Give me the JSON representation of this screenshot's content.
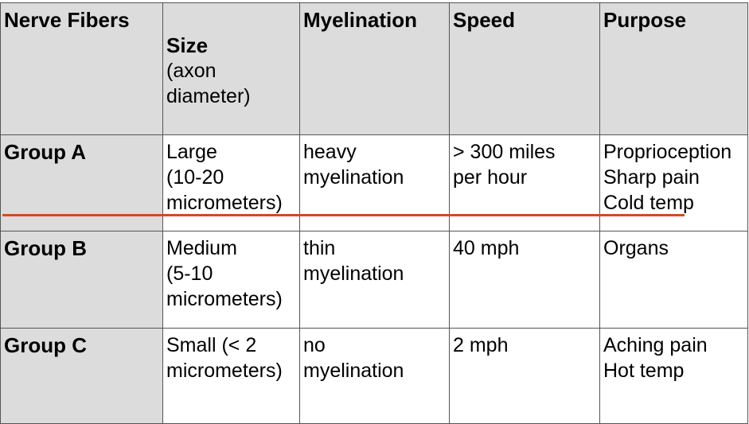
{
  "table": {
    "headers": {
      "fibers": "Nerve Fibers",
      "size": "Size",
      "size_sub": "(axon\ndiameter)",
      "myelination": "Myelination",
      "speed": "Speed",
      "purpose": "Purpose"
    },
    "rows": [
      {
        "group": "Group A",
        "size": "Large\n(10-20\nmicrometers)",
        "myelination": "heavy\nmyelination",
        "speed": "> 300 miles\nper hour",
        "purpose": "Proprioception\nSharp pain\nCold temp"
      },
      {
        "group": "Group B",
        "size": "Medium\n(5-10\nmicrometers)",
        "myelination": "thin\nmyelination",
        "speed": "40 mph",
        "purpose": "Organs"
      },
      {
        "group": "Group C",
        "size": "Small (< 2\nmicrometers)",
        "myelination": "no\nmyelination",
        "speed": "2 mph",
        "purpose": "Aching pain\nHot temp"
      }
    ]
  },
  "colors": {
    "header_bg": "#dcdcdc",
    "strike_line": "#d24a2a"
  }
}
